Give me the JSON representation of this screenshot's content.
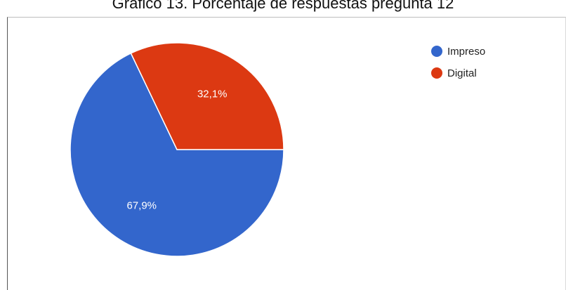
{
  "caption": "Gráfico 13. Porcentaje de respuestas pregunta 12",
  "chart_data": {
    "type": "pie",
    "title": "Gráfico 13. Porcentaje de respuestas pregunta 12",
    "slices": [
      {
        "label": "Impreso",
        "value": 67.9,
        "display": "67,9%",
        "color": "#3366cc"
      },
      {
        "label": "Digital",
        "value": 32.1,
        "display": "32,1%",
        "color": "#dc3912"
      }
    ],
    "legend_position": "top-right"
  }
}
